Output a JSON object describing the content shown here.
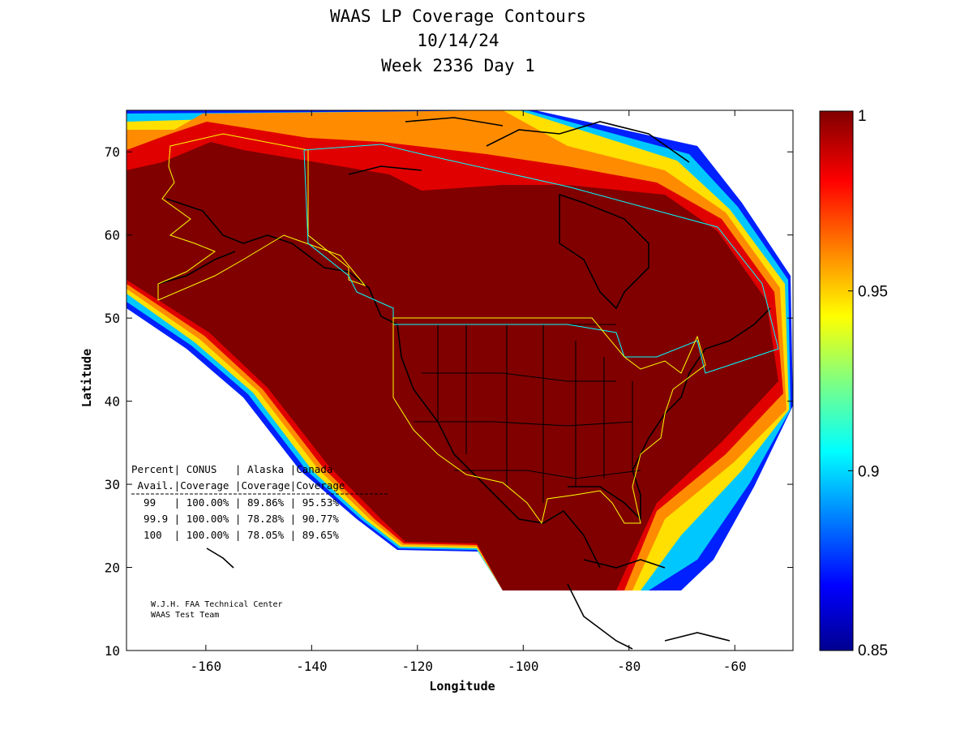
{
  "title": {
    "line1": "WAAS LP Coverage Contours",
    "line2": "10/14/24",
    "line3": "Week 2336 Day 1"
  },
  "axes": {
    "xlabel": "Longitude",
    "ylabel": "Latitude",
    "xticks": [
      "-160",
      "-140",
      "-120",
      "-100",
      "-80",
      "-60"
    ],
    "yticks": [
      "70",
      "60",
      "50",
      "40",
      "30",
      "20",
      "10"
    ],
    "xlim": [
      -175,
      -49
    ],
    "ylim": [
      10,
      75
    ]
  },
  "colorbar": {
    "ticks": [
      "1",
      "0.95",
      "0.9",
      "0.85"
    ],
    "range": [
      0.85,
      1
    ],
    "colormap": "jet"
  },
  "coverage_table": {
    "header1": "Percent| CONUS   | Alaska |Canada",
    "header2": " Avail.|Coverage |Coverage|Coverage",
    "rows": [
      "  99   | 100.00% | 89.86% | 95.53%",
      "  99.9 | 100.00% | 78.28% | 90.77%",
      "  100  | 100.00% | 78.05% | 89.65%"
    ]
  },
  "credit": {
    "line1": "W.J.H. FAA Technical Center",
    "line2": "WAAS Test Team"
  },
  "colors": {
    "deep_red": "#800000",
    "red": "#e00000",
    "orange": "#ff8c00",
    "yellow": "#ffff00",
    "cyan": "#00c8ff",
    "blue": "#0000c8",
    "service_area_conus_alaska": "#ffff00",
    "service_area_canada": "#00ffff"
  }
}
